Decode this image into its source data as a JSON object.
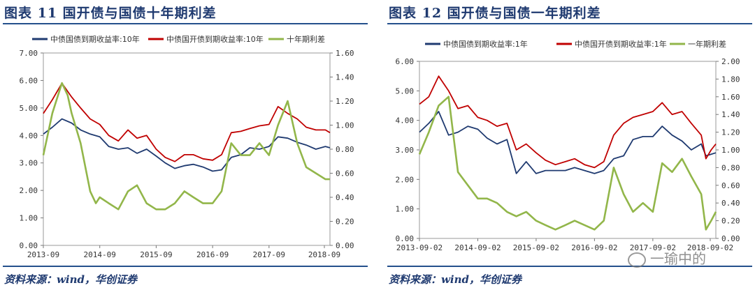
{
  "figures": [
    {
      "title": "图表 11 国开债与国债十年期利差",
      "source": "资料来源：wind，华创证券"
    },
    {
      "title": "图表 12 国开债与国债一年期利差",
      "source": "资料来源：wind，华创证券"
    }
  ],
  "watermark": {
    "text": "一瑜中的",
    "icon": "wechat-icon"
  },
  "chart_data": [
    {
      "type": "line",
      "title": "",
      "legend_position": "top",
      "grid": false,
      "x_ticks": [
        "2013-09",
        "2014-09",
        "2015-09",
        "2016-09",
        "2017-09",
        "2018-09"
      ],
      "x_range": [
        2013.67,
        2018.75
      ],
      "y_left": {
        "range": [
          0,
          7
        ],
        "ticks": [
          "0.00",
          "1.00",
          "2.00",
          "3.00",
          "4.00",
          "5.00",
          "6.00",
          "7.00"
        ]
      },
      "y_right": {
        "range": [
          0,
          1.6
        ],
        "ticks": [
          "0.00",
          "0.20",
          "0.40",
          "0.60",
          "0.80",
          "1.00",
          "1.20",
          "1.40",
          "1.60"
        ]
      },
      "series": [
        {
          "name": "中债国债到期收益率:10年",
          "color": "#1f3a70",
          "axis": "left",
          "x": [
            2013.67,
            2013.83,
            2014.0,
            2014.17,
            2014.33,
            2014.5,
            2014.67,
            2014.83,
            2015.0,
            2015.17,
            2015.33,
            2015.5,
            2015.67,
            2015.83,
            2016.0,
            2016.17,
            2016.33,
            2016.5,
            2016.67,
            2016.83,
            2017.0,
            2017.17,
            2017.33,
            2017.5,
            2017.67,
            2017.83,
            2018.0,
            2018.17,
            2018.33,
            2018.5,
            2018.67,
            2018.75
          ],
          "y": [
            4.05,
            4.3,
            4.6,
            4.45,
            4.2,
            4.05,
            3.95,
            3.6,
            3.5,
            3.55,
            3.35,
            3.5,
            3.25,
            3.0,
            2.8,
            2.9,
            2.95,
            2.85,
            2.7,
            2.75,
            3.2,
            3.3,
            3.55,
            3.5,
            3.6,
            3.95,
            3.9,
            3.75,
            3.65,
            3.5,
            3.6,
            3.55
          ]
        },
        {
          "name": "中债国开债到期收益率:10年",
          "color": "#c00000",
          "axis": "left",
          "x": [
            2013.67,
            2013.83,
            2014.0,
            2014.17,
            2014.33,
            2014.5,
            2014.67,
            2014.83,
            2015.0,
            2015.17,
            2015.33,
            2015.5,
            2015.67,
            2015.83,
            2016.0,
            2016.17,
            2016.33,
            2016.5,
            2016.67,
            2016.83,
            2017.0,
            2017.17,
            2017.33,
            2017.5,
            2017.67,
            2017.83,
            2018.0,
            2018.17,
            2018.33,
            2018.5,
            2018.67,
            2018.75
          ],
          "y": [
            4.8,
            5.3,
            5.9,
            5.4,
            5.0,
            4.6,
            4.4,
            4.0,
            3.8,
            4.2,
            3.9,
            4.0,
            3.5,
            3.2,
            3.05,
            3.3,
            3.3,
            3.15,
            3.1,
            3.3,
            4.1,
            4.15,
            4.25,
            4.35,
            4.4,
            5.05,
            4.8,
            4.6,
            4.3,
            4.2,
            4.2,
            4.1
          ]
        },
        {
          "name": "十年期利差",
          "color": "#92b64a",
          "axis": "right",
          "x": [
            2013.67,
            2013.83,
            2014.0,
            2014.1,
            2014.17,
            2014.33,
            2014.5,
            2014.6,
            2014.67,
            2014.83,
            2015.0,
            2015.17,
            2015.33,
            2015.5,
            2015.67,
            2015.83,
            2016.0,
            2016.17,
            2016.33,
            2016.5,
            2016.67,
            2016.83,
            2017.0,
            2017.17,
            2017.33,
            2017.5,
            2017.67,
            2017.83,
            2018.0,
            2018.17,
            2018.33,
            2018.5,
            2018.67,
            2018.75
          ],
          "y": [
            0.75,
            1.1,
            1.35,
            1.25,
            1.1,
            0.85,
            0.45,
            0.35,
            0.4,
            0.35,
            0.3,
            0.45,
            0.5,
            0.35,
            0.3,
            0.3,
            0.35,
            0.45,
            0.4,
            0.35,
            0.35,
            0.45,
            0.85,
            0.75,
            0.75,
            0.85,
            0.75,
            1.0,
            1.2,
            0.85,
            0.65,
            0.6,
            0.55,
            0.55
          ]
        }
      ]
    },
    {
      "type": "line",
      "title": "",
      "legend_position": "top",
      "grid": false,
      "x_ticks": [
        "2013-09-02",
        "2014-09-02",
        "2015-09-02",
        "2016-09-02",
        "2017-09-02",
        "2018-09-02"
      ],
      "x_range": [
        2013.67,
        2018.75
      ],
      "y_left": {
        "range": [
          0,
          6
        ],
        "ticks": [
          "0.00",
          "1.00",
          "2.00",
          "3.00",
          "4.00",
          "5.00",
          "6.00"
        ]
      },
      "y_right": {
        "range": [
          0,
          2
        ],
        "ticks": [
          "0.00",
          "0.20",
          "0.40",
          "0.60",
          "0.80",
          "1.00",
          "1.20",
          "1.40",
          "1.60",
          "1.80",
          "2.00"
        ]
      },
      "series": [
        {
          "name": "中债国债到期收益率:1年",
          "color": "#1f3a70",
          "axis": "left",
          "x": [
            2013.67,
            2013.83,
            2014.0,
            2014.17,
            2014.33,
            2014.5,
            2014.67,
            2014.83,
            2015.0,
            2015.17,
            2015.33,
            2015.5,
            2015.67,
            2015.83,
            2016.0,
            2016.17,
            2016.33,
            2016.5,
            2016.67,
            2016.83,
            2017.0,
            2017.17,
            2017.33,
            2017.5,
            2017.67,
            2017.83,
            2018.0,
            2018.17,
            2018.33,
            2018.5,
            2018.58,
            2018.67,
            2018.75
          ],
          "y": [
            3.6,
            3.9,
            4.3,
            3.5,
            3.6,
            3.8,
            3.7,
            3.4,
            3.2,
            3.35,
            2.2,
            2.6,
            2.2,
            2.3,
            2.3,
            2.3,
            2.4,
            2.3,
            2.2,
            2.3,
            2.7,
            2.8,
            3.35,
            3.45,
            3.45,
            3.8,
            3.5,
            3.3,
            3.0,
            3.2,
            2.8,
            2.85,
            2.9
          ]
        },
        {
          "name": "中债国开债到期收益率:1年",
          "color": "#c00000",
          "axis": "left",
          "x": [
            2013.67,
            2013.83,
            2014.0,
            2014.17,
            2014.33,
            2014.5,
            2014.67,
            2014.83,
            2015.0,
            2015.17,
            2015.33,
            2015.5,
            2015.67,
            2015.83,
            2016.0,
            2016.17,
            2016.33,
            2016.5,
            2016.67,
            2016.83,
            2017.0,
            2017.17,
            2017.33,
            2017.5,
            2017.67,
            2017.83,
            2018.0,
            2018.17,
            2018.33,
            2018.5,
            2018.58,
            2018.67,
            2018.75
          ],
          "y": [
            4.55,
            4.8,
            5.5,
            5.0,
            4.4,
            4.5,
            4.1,
            4.0,
            3.8,
            3.9,
            3.0,
            3.2,
            2.9,
            2.65,
            2.5,
            2.6,
            2.7,
            2.5,
            2.4,
            2.6,
            3.5,
            3.9,
            4.1,
            4.2,
            4.3,
            4.6,
            4.2,
            4.3,
            3.9,
            3.5,
            2.7,
            3.0,
            3.2
          ]
        },
        {
          "name": "一年期利差",
          "color": "#92b64a",
          "axis": "right",
          "x": [
            2013.67,
            2013.83,
            2014.0,
            2014.17,
            2014.33,
            2014.5,
            2014.67,
            2014.83,
            2015.0,
            2015.17,
            2015.33,
            2015.5,
            2015.67,
            2015.83,
            2016.0,
            2016.17,
            2016.33,
            2016.5,
            2016.67,
            2016.83,
            2017.0,
            2017.17,
            2017.33,
            2017.5,
            2017.67,
            2017.83,
            2018.0,
            2018.17,
            2018.33,
            2018.5,
            2018.58,
            2018.67,
            2018.75
          ],
          "y": [
            0.95,
            1.2,
            1.5,
            1.6,
            0.75,
            0.6,
            0.45,
            0.45,
            0.4,
            0.3,
            0.25,
            0.3,
            0.2,
            0.15,
            0.1,
            0.15,
            0.2,
            0.15,
            0.1,
            0.2,
            0.8,
            0.5,
            0.3,
            0.4,
            0.3,
            0.85,
            0.75,
            0.9,
            0.7,
            0.5,
            0.1,
            0.2,
            0.3
          ]
        }
      ]
    }
  ]
}
